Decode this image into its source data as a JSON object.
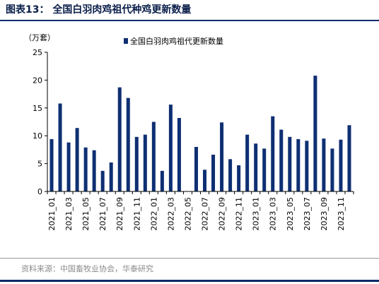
{
  "header": {
    "title": "图表13：  全国白羽肉鸡祖代种鸡更新数量"
  },
  "footer": {
    "source": "资料来源：中国畜牧业协会，华泰研究"
  },
  "colors": {
    "bar": "#0e2f72",
    "accent": "#0b2a6b"
  },
  "chart_data": {
    "type": "bar",
    "unit_label": "（万套）",
    "legend": {
      "position": "top",
      "entries": [
        "全国白羽肉鸡祖代更新数量"
      ]
    },
    "ylim": [
      0,
      25
    ],
    "yticks": [
      0,
      5,
      10,
      15,
      20,
      25
    ],
    "categories": [
      "2021_01",
      "2021_02",
      "2021_03",
      "2021_04",
      "2021_05",
      "2021_06",
      "2021_07",
      "2021_08",
      "2021_09",
      "2021_10",
      "2021_11",
      "2021_12",
      "2022_01",
      "2022_02",
      "2022_03",
      "2022_04",
      "2022_05",
      "2022_06",
      "2022_07",
      "2022_08",
      "2022_09",
      "2022_10",
      "2022_11",
      "2022_12",
      "2023_01",
      "2023_02",
      "2023_03",
      "2023_04",
      "2023_05",
      "2023_06",
      "2023_07",
      "2023_08",
      "2023_09",
      "2023_10",
      "2023_11",
      "2023_12"
    ],
    "xtick_labels": [
      "2021_01",
      "2021_03",
      "2021_05",
      "2021_07",
      "2021_09",
      "2021_11",
      "2022_01",
      "2022_03",
      "2022_05",
      "2022_07",
      "2022_09",
      "2022_11",
      "2023_01",
      "2023_03",
      "2023_05",
      "2023_07",
      "2023_09",
      "2023_11"
    ],
    "series": [
      {
        "name": "全国白羽肉鸡祖代更新数量",
        "values": [
          9.4,
          15.8,
          8.8,
          11.4,
          7.9,
          7.4,
          3.7,
          5.2,
          18.7,
          16.8,
          9.8,
          10.2,
          12.5,
          3.7,
          15.6,
          13.2,
          0,
          8.0,
          3.9,
          6.6,
          12.4,
          5.8,
          4.7,
          10.2,
          8.6,
          7.7,
          13.5,
          11.1,
          9.8,
          9.4,
          9.1,
          20.8,
          9.5,
          7.7,
          9.3,
          11.9
        ]
      }
    ]
  }
}
